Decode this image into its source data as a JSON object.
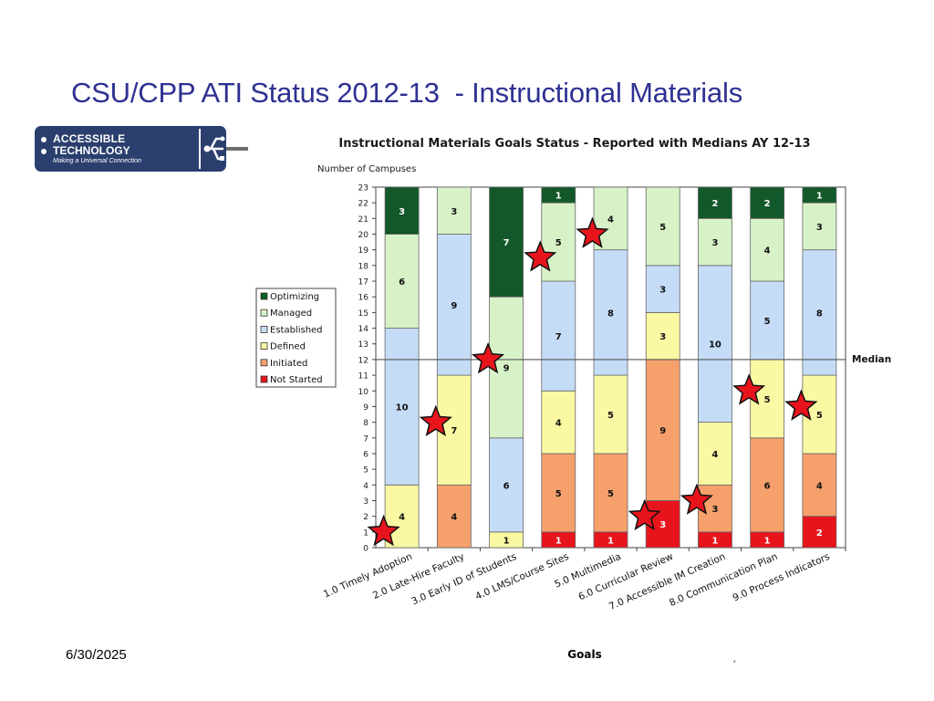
{
  "slide": {
    "title": "CSU/CPP ATI Status 2012-13  - Instructional Materials",
    "date": "6/30/2025",
    "footer_mark": "¸"
  },
  "logo": {
    "line1": "ACCESSIBLE",
    "line2": "TECHNOLOGY",
    "tagline": "Making a Universal Connection",
    "icon": "usb-icon",
    "bg_color": "#2b3f6e"
  },
  "chart_data": {
    "type": "bar",
    "stacked": true,
    "title": "Instructional Materials Goals Status  - Reported with Medians AY 12-13",
    "ylabel": "Number of Campuses",
    "xlabel": "Goals",
    "ylim": [
      0,
      23
    ],
    "yticks": [
      0,
      1,
      2,
      3,
      4,
      5,
      6,
      7,
      8,
      9,
      10,
      11,
      12,
      13,
      14,
      15,
      16,
      17,
      18,
      19,
      20,
      21,
      22,
      23
    ],
    "grid": false,
    "legend_position": "left",
    "median": {
      "value": 12,
      "label": "Median"
    },
    "categories": [
      "1.0 Timely Adoption",
      "2.0 Late-Hire Faculty",
      "3.0 Early ID of Students",
      "4.0 LMS/Course Sites",
      "5.0 Multimedia",
      "6.0 Curricular Review",
      "7.0 Accessible IM Creation",
      "8.0 Communication Plan",
      "9.0 Process Indicators"
    ],
    "series": [
      {
        "name": "Not Started",
        "color": "#e8141c",
        "values": [
          0,
          0,
          0,
          1,
          1,
          3,
          1,
          1,
          2
        ]
      },
      {
        "name": "Initiated",
        "color": "#f6a06c",
        "values": [
          0,
          4,
          0,
          5,
          5,
          9,
          3,
          6,
          4
        ]
      },
      {
        "name": "Defined",
        "color": "#fbf8a4",
        "values": [
          4,
          7,
          1,
          4,
          5,
          3,
          4,
          5,
          5
        ]
      },
      {
        "name": "Established",
        "color": "#c5dcf7",
        "values": [
          10,
          9,
          6,
          7,
          8,
          3,
          10,
          5,
          8
        ]
      },
      {
        "name": "Managed",
        "color": "#d8f2c8",
        "values": [
          6,
          3,
          9,
          5,
          4,
          5,
          3,
          4,
          3
        ]
      },
      {
        "name": "Optimizing",
        "color": "#12582a",
        "values": [
          3,
          0,
          7,
          1,
          0,
          0,
          2,
          2,
          1
        ]
      }
    ],
    "medians": [
      1,
      8,
      12,
      18.5,
      20,
      2,
      3,
      10,
      9
    ]
  }
}
